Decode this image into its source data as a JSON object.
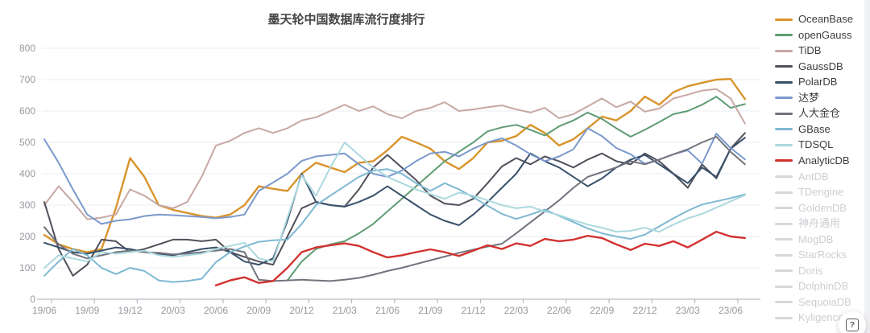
{
  "title": {
    "text": "墨天轮中国数据库流行度排行"
  },
  "help_button": {
    "label": "?"
  },
  "chart_data": {
    "type": "line",
    "title": "墨天轮中国数据库流行度排行",
    "x_axis": {
      "tick_labels": [
        "19/06",
        "19/09",
        "19/12",
        "20/03",
        "20/06",
        "20/09",
        "20/12",
        "21/03",
        "21/06",
        "21/09",
        "21/12",
        "22/03",
        "22/06",
        "22/09",
        "22/12",
        "23/03",
        "23/06"
      ],
      "points_per_tick": 3,
      "total_points": 50
    },
    "y_axis": {
      "min": 0,
      "max": 800,
      "ticks": [
        0,
        100,
        200,
        300,
        400,
        500,
        600,
        700,
        800
      ]
    },
    "grid": true,
    "legend_position": "right",
    "series": [
      {
        "id": "oceanbase",
        "name": "OceanBase",
        "color": "#d9942c",
        "width": 2.4,
        "values": [
          205,
          175,
          160,
          150,
          160,
          290,
          450,
          390,
          300,
          285,
          275,
          265,
          260,
          270,
          300,
          360,
          352,
          345,
          400,
          435,
          420,
          405,
          435,
          440,
          475,
          518,
          500,
          480,
          440,
          415,
          450,
          500,
          505,
          520,
          556,
          530,
          490,
          510,
          545,
          582,
          570,
          600,
          646,
          620,
          660,
          679,
          690,
          700,
          702,
          638
        ]
      },
      {
        "id": "opengauss",
        "name": "openGauss",
        "color": "#5f9c74",
        "width": 2,
        "values": [
          null,
          null,
          null,
          null,
          null,
          null,
          null,
          null,
          null,
          null,
          null,
          null,
          null,
          null,
          null,
          null,
          null,
          60,
          120,
          160,
          175,
          185,
          210,
          240,
          280,
          320,
          360,
          400,
          440,
          470,
          500,
          535,
          548,
          556,
          540,
          522,
          551,
          570,
          595,
          575,
          545,
          518,
          540,
          565,
          590,
          600,
          620,
          646,
          610,
          622
        ]
      },
      {
        "id": "tidb",
        "name": "TiDB",
        "color": "#c7a8a3",
        "width": 2,
        "values": [
          300,
          360,
          310,
          255,
          260,
          270,
          350,
          330,
          300,
          290,
          310,
          390,
          490,
          505,
          530,
          545,
          530,
          545,
          570,
          580,
          600,
          620,
          600,
          615,
          590,
          577,
          600,
          610,
          628,
          600,
          605,
          612,
          618,
          605,
          595,
          610,
          577,
          590,
          615,
          640,
          612,
          630,
          598,
          608,
          640,
          652,
          665,
          670,
          640,
          560
        ]
      },
      {
        "id": "gaussdb",
        "name": "GaussDB",
        "color": "#50505a",
        "width": 2,
        "values": [
          310,
          160,
          75,
          110,
          190,
          185,
          150,
          160,
          175,
          190,
          190,
          185,
          190,
          150,
          135,
          120,
          110,
          200,
          290,
          310,
          300,
          295,
          350,
          420,
          460,
          420,
          380,
          330,
          305,
          300,
          320,
          370,
          423,
          450,
          430,
          455,
          440,
          420,
          445,
          465,
          440,
          430,
          465,
          440,
          400,
          355,
          430,
          385,
          480,
          530
        ]
      },
      {
        "id": "polardb",
        "name": "PolarDB",
        "color": "#39506b",
        "width": 2,
        "values": [
          180,
          165,
          150,
          145,
          155,
          165,
          160,
          150,
          145,
          140,
          150,
          160,
          165,
          150,
          120,
          110,
          130,
          250,
          400,
          310,
          300,
          295,
          310,
          330,
          360,
          330,
          300,
          270,
          250,
          236,
          270,
          310,
          355,
          400,
          465,
          440,
          420,
          390,
          360,
          385,
          420,
          445,
          460,
          430,
          400,
          370,
          420,
          390,
          480,
          515
        ]
      },
      {
        "id": "dameng",
        "name": "达梦",
        "color": "#7b99cc",
        "width": 2,
        "values": [
          510,
          435,
          350,
          270,
          240,
          250,
          255,
          265,
          270,
          268,
          265,
          262,
          258,
          262,
          270,
          345,
          372,
          400,
          441,
          455,
          460,
          465,
          430,
          400,
          390,
          410,
          440,
          465,
          470,
          455,
          480,
          500,
          513,
          490,
          462,
          440,
          455,
          478,
          545,
          520,
          482,
          462,
          432,
          445,
          462,
          475,
          432,
          528,
          482,
          446
        ]
      },
      {
        "id": "renda-jincang",
        "name": "人大金仓",
        "color": "#73737d",
        "width": 2,
        "values": [
          230,
          175,
          145,
          130,
          140,
          150,
          155,
          150,
          148,
          143,
          145,
          150,
          155,
          160,
          150,
          62,
          58,
          60,
          62,
          60,
          58,
          62,
          68,
          78,
          90,
          100,
          112,
          124,
          136,
          148,
          158,
          168,
          177,
          210,
          245,
          280,
          315,
          355,
          390,
          405,
          420,
          440,
          430,
          445,
          462,
          478,
          500,
          518,
          470,
          430
        ]
      },
      {
        "id": "gbase",
        "name": "GBase",
        "color": "#7eb8d2",
        "width": 2,
        "values": [
          75,
          120,
          160,
          140,
          100,
          80,
          100,
          90,
          60,
          55,
          58,
          65,
          118,
          150,
          168,
          183,
          188,
          190,
          240,
          300,
          330,
          360,
          390,
          410,
          415,
          400,
          370,
          345,
          370,
          350,
          325,
          298,
          272,
          256,
          270,
          286,
          266,
          246,
          226,
          210,
          200,
          192,
          206,
          232,
          258,
          282,
          302,
          312,
          322,
          334
        ]
      },
      {
        "id": "tdsql",
        "name": "TDSQL",
        "color": "#abd8de",
        "width": 2,
        "values": [
          100,
          140,
          130,
          120,
          150,
          145,
          150,
          155,
          140,
          135,
          140,
          145,
          160,
          170,
          180,
          130,
          120,
          260,
          395,
          330,
          420,
          500,
          460,
          420,
          390,
          370,
          350,
          335,
          320,
          340,
          330,
          315,
          300,
          290,
          295,
          280,
          268,
          252,
          238,
          228,
          215,
          218,
          228,
          215,
          238,
          258,
          272,
          292,
          312,
          332
        ]
      },
      {
        "id": "analyticdb",
        "name": "AnalyticDB",
        "color": "#d23230",
        "width": 2.4,
        "values": [
          null,
          null,
          null,
          null,
          null,
          null,
          null,
          null,
          null,
          null,
          null,
          null,
          44,
          60,
          70,
          52,
          58,
          100,
          150,
          165,
          172,
          178,
          170,
          150,
          133,
          140,
          150,
          159,
          150,
          138,
          155,
          172,
          160,
          178,
          170,
          192,
          185,
          190,
          202,
          195,
          175,
          157,
          177,
          170,
          185,
          165,
          190,
          215,
          200,
          195
        ]
      }
    ],
    "disabled_series": [
      "AntDB",
      "TDengine",
      "GoldenDB",
      "神舟通用",
      "MogDB",
      "StarRocks",
      "Doris",
      "DolphinDB",
      "SequoiaDB",
      "Kyligence"
    ]
  },
  "legend": {
    "active_text_color": "#3c3c42",
    "disabled_text_color": "#cdced3",
    "disabled_swatch_color": "#d6d7da",
    "items": [
      {
        "id": "oceanbase",
        "label": "OceanBase",
        "active": true
      },
      {
        "id": "opengauss",
        "label": "openGauss",
        "active": true
      },
      {
        "id": "tidb",
        "label": "TiDB",
        "active": true
      },
      {
        "id": "gaussdb",
        "label": "GaussDB",
        "active": true
      },
      {
        "id": "polardb",
        "label": "PolarDB",
        "active": true
      },
      {
        "id": "dameng",
        "label": "达梦",
        "active": true
      },
      {
        "id": "renda-jincang",
        "label": "人大金仓",
        "active": true
      },
      {
        "id": "gbase",
        "label": "GBase",
        "active": true
      },
      {
        "id": "tdsql",
        "label": "TDSQL",
        "active": true
      },
      {
        "id": "analyticdb",
        "label": "AnalyticDB",
        "active": true
      },
      {
        "id": "antdb",
        "label": "AntDB",
        "active": false
      },
      {
        "id": "tdengine",
        "label": "TDengine",
        "active": false
      },
      {
        "id": "goldendb",
        "label": "GoldenDB",
        "active": false
      },
      {
        "id": "shenzhou-tongyong",
        "label": "神舟通用",
        "active": false
      },
      {
        "id": "mogdb",
        "label": "MogDB",
        "active": false
      },
      {
        "id": "starrocks",
        "label": "StarRocks",
        "active": false
      },
      {
        "id": "doris",
        "label": "Doris",
        "active": false
      },
      {
        "id": "dolphindb",
        "label": "DolphinDB",
        "active": false
      },
      {
        "id": "sequoiadb",
        "label": "SequoiaDB",
        "active": false
      },
      {
        "id": "kyligence",
        "label": "Kyligence",
        "active": false
      }
    ]
  },
  "style": {
    "grid_line_color": "#e9eef6",
    "axis_line_color": "#aaadb5",
    "axis_label_color": "#97979f"
  }
}
